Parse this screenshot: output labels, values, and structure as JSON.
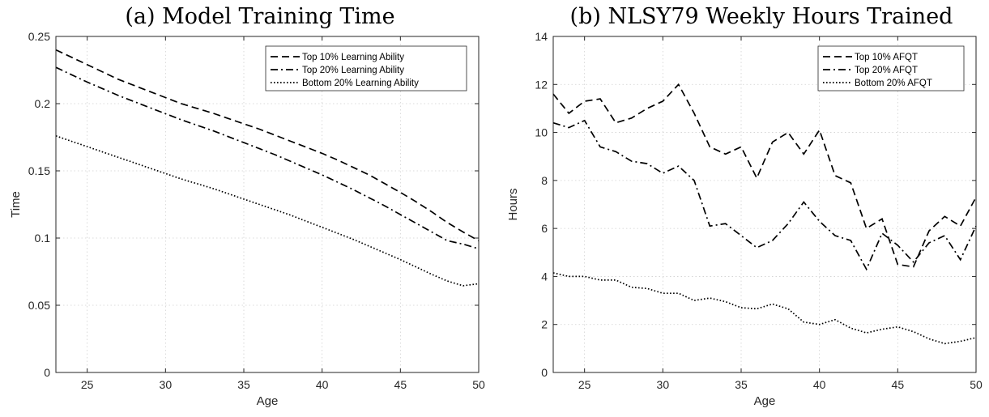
{
  "chart_data": [
    {
      "type": "line",
      "title": "(a) Model Training Time",
      "xlabel": "Age",
      "ylabel": "Time",
      "xlim": [
        23,
        50
      ],
      "ylim": [
        0,
        0.25
      ],
      "xticks": [
        25,
        30,
        35,
        40,
        45,
        50
      ],
      "yticks": [
        0,
        0.05,
        0.1,
        0.15,
        0.2,
        0.25
      ],
      "ytick_labels": [
        "0",
        "0.05",
        "0.1",
        "0.15",
        "0.2",
        "0.25"
      ],
      "grid": true,
      "legend_position": "top-right",
      "x": [
        23,
        24,
        25,
        26,
        27,
        28,
        29,
        30,
        31,
        32,
        33,
        34,
        35,
        36,
        37,
        38,
        39,
        40,
        41,
        42,
        43,
        44,
        45,
        46,
        47,
        48,
        49,
        50
      ],
      "series": [
        {
          "name": "Top 10% Learning Ability",
          "style": "dashed",
          "values": [
            0.24,
            0.2345,
            0.229,
            0.2235,
            0.218,
            0.2135,
            0.209,
            0.2045,
            0.2,
            0.1965,
            0.193,
            0.189,
            0.185,
            0.181,
            0.1765,
            0.172,
            0.1675,
            0.163,
            0.158,
            0.1525,
            0.147,
            0.1405,
            0.134,
            0.127,
            0.1195,
            0.1115,
            0.1045,
            0.098
          ]
        },
        {
          "name": "Top 20% Learning Ability",
          "style": "dashdot",
          "values": [
            0.227,
            0.2215,
            0.216,
            0.211,
            0.206,
            0.2015,
            0.197,
            0.1925,
            0.188,
            0.184,
            0.18,
            0.1755,
            0.171,
            0.1665,
            0.162,
            0.157,
            0.152,
            0.147,
            0.1415,
            0.136,
            0.13,
            0.124,
            0.1175,
            0.111,
            0.1045,
            0.098,
            0.0955,
            0.092
          ]
        },
        {
          "name": "Bottom 20% Learning Ability",
          "style": "dotted",
          "values": [
            0.176,
            0.172,
            0.168,
            0.164,
            0.16,
            0.156,
            0.152,
            0.148,
            0.144,
            0.1405,
            0.137,
            0.133,
            0.129,
            0.125,
            0.121,
            0.117,
            0.1125,
            0.108,
            0.1035,
            0.099,
            0.094,
            0.089,
            0.084,
            0.0785,
            0.073,
            0.068,
            0.0645,
            0.066
          ]
        }
      ]
    },
    {
      "type": "line",
      "title": "(b) NLSY79 Weekly Hours Trained",
      "xlabel": "Age",
      "ylabel": "Hours",
      "xlim": [
        23,
        50
      ],
      "ylim": [
        0,
        14
      ],
      "xticks": [
        25,
        30,
        35,
        40,
        45,
        50
      ],
      "yticks": [
        0,
        2,
        4,
        6,
        8,
        10,
        12,
        14
      ],
      "ytick_labels": [
        "0",
        "2",
        "4",
        "6",
        "8",
        "10",
        "12",
        "14"
      ],
      "grid": true,
      "legend_position": "top-right",
      "x": [
        23,
        24,
        25,
        26,
        27,
        28,
        29,
        30,
        31,
        32,
        33,
        34,
        35,
        36,
        37,
        38,
        39,
        40,
        41,
        42,
        43,
        44,
        45,
        46,
        47,
        48,
        49,
        50
      ],
      "series": [
        {
          "name": "Top 10% AFQT",
          "style": "dashed",
          "values": [
            11.6,
            10.8,
            11.3,
            11.4,
            10.4,
            10.6,
            11.0,
            11.3,
            12.0,
            10.8,
            9.4,
            9.1,
            9.4,
            8.1,
            9.6,
            10.0,
            9.1,
            10.1,
            8.2,
            7.9,
            6.0,
            6.4,
            4.5,
            4.4,
            5.9,
            6.5,
            6.1,
            7.3
          ]
        },
        {
          "name": "Top 20% AFQT",
          "style": "dashdot",
          "values": [
            10.4,
            10.2,
            10.5,
            9.4,
            9.2,
            8.8,
            8.7,
            8.3,
            8.6,
            8.0,
            6.1,
            6.2,
            5.7,
            5.2,
            5.5,
            6.2,
            7.1,
            6.3,
            5.7,
            5.5,
            4.3,
            5.8,
            5.3,
            4.6,
            5.4,
            5.7,
            4.7,
            6.1
          ]
        },
        {
          "name": "Bottom 20% AFQT",
          "style": "dotted",
          "values": [
            4.15,
            4.0,
            4.0,
            3.85,
            3.85,
            3.55,
            3.5,
            3.3,
            3.3,
            3.0,
            3.1,
            2.95,
            2.7,
            2.65,
            2.85,
            2.65,
            2.1,
            2.0,
            2.2,
            1.85,
            1.65,
            1.8,
            1.9,
            1.7,
            1.4,
            1.2,
            1.3,
            1.45
          ]
        }
      ]
    }
  ]
}
